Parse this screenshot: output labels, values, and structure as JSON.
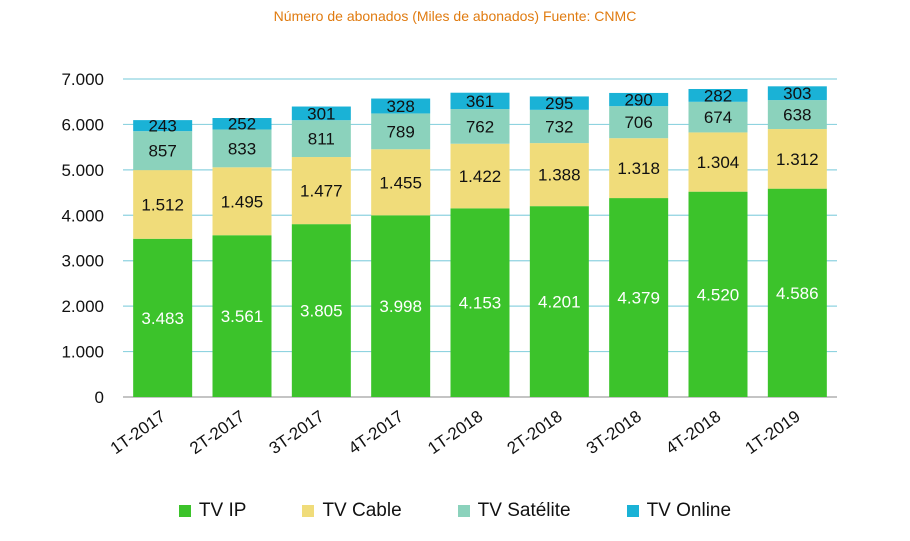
{
  "chart_data": {
    "type": "bar",
    "stacked": true,
    "title": "Número de abonados (Miles de abonados) Fuente: CNMC",
    "categories": [
      "1T-2017",
      "2T-2017",
      "3T-2017",
      "4T-2017",
      "1T-2018",
      "2T-2018",
      "3T-2018",
      "4T-2018",
      "1T-2019"
    ],
    "series": [
      {
        "name": "TV IP",
        "color": "#3cc32b",
        "values": [
          3483,
          3561,
          3805,
          3998,
          4153,
          4201,
          4379,
          4520,
          4586
        ],
        "labels": [
          "3.483",
          "3.561",
          "3.805",
          "3.998",
          "4.153",
          "4.201",
          "4.379",
          "4.520",
          "4.586"
        ]
      },
      {
        "name": "TV Cable",
        "color": "#f0dc7a",
        "values": [
          1512,
          1495,
          1477,
          1455,
          1422,
          1388,
          1318,
          1304,
          1312
        ],
        "labels": [
          "1.512",
          "1.495",
          "1.477",
          "1.455",
          "1.422",
          "1.388",
          "1.318",
          "1.304",
          "1.312"
        ]
      },
      {
        "name": "TV Satélite",
        "color": "#8bd2bc",
        "values": [
          857,
          833,
          811,
          789,
          762,
          732,
          706,
          674,
          638
        ],
        "labels": [
          "857",
          "833",
          "811",
          "789",
          "762",
          "732",
          "706",
          "674",
          "638"
        ]
      },
      {
        "name": "TV Online",
        "color": "#1ab2d6",
        "values": [
          243,
          252,
          301,
          328,
          361,
          295,
          290,
          282,
          303
        ],
        "labels": [
          "243",
          "252",
          "301",
          "328",
          "361",
          "295",
          "290",
          "282",
          "303"
        ]
      }
    ],
    "ylim": [
      0,
      7000
    ],
    "yticks": [
      0,
      1000,
      2000,
      3000,
      4000,
      5000,
      6000,
      7000
    ],
    "ytick_labels": [
      "0",
      "1.000",
      "2.000",
      "3.000",
      "4.000",
      "5.000",
      "6.000",
      "7.000"
    ],
    "grid": true,
    "gridline_color": "#8fd3e0",
    "legend_position": "bottom"
  }
}
